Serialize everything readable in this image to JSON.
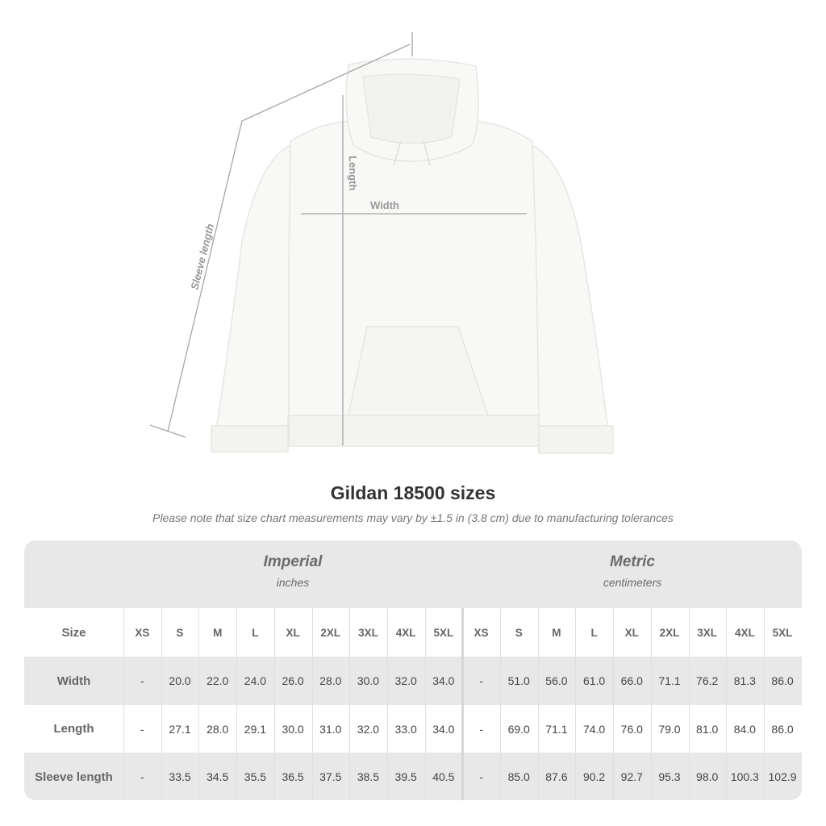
{
  "diagram": {
    "labels": {
      "sleeve": "Sleeve length",
      "length": "Length",
      "width": "Width"
    },
    "garment_color": "#f8f8f6",
    "line_color": "#a6a6a6"
  },
  "title": "Gildan 18500 sizes",
  "note": "Please note that size chart measurements may vary by ±1.5 in (3.8 cm) due to manufacturing tolerances",
  "table": {
    "imperial": {
      "title": "Imperial",
      "unit": "inches"
    },
    "metric": {
      "title": "Metric",
      "unit": "centimeters"
    },
    "size_label": "Size",
    "sizes": [
      "XS",
      "S",
      "M",
      "L",
      "XL",
      "2XL",
      "3XL",
      "4XL",
      "5XL"
    ],
    "rows": [
      {
        "label": "Width",
        "imperial": [
          "-",
          "20.0",
          "22.0",
          "24.0",
          "26.0",
          "28.0",
          "30.0",
          "32.0",
          "34.0"
        ],
        "metric": [
          "-",
          "51.0",
          "56.0",
          "61.0",
          "66.0",
          "71.1",
          "76.2",
          "81.3",
          "86.0"
        ]
      },
      {
        "label": "Length",
        "imperial": [
          "-",
          "27.1",
          "28.0",
          "29.1",
          "30.0",
          "31.0",
          "32.0",
          "33.0",
          "34.0"
        ],
        "metric": [
          "-",
          "69.0",
          "71.1",
          "74.0",
          "76.0",
          "79.0",
          "81.0",
          "84.0",
          "86.0"
        ]
      },
      {
        "label": "Sleeve length",
        "imperial": [
          "-",
          "33.5",
          "34.5",
          "35.5",
          "36.5",
          "37.5",
          "38.5",
          "39.5",
          "40.5"
        ],
        "metric": [
          "-",
          "85.0",
          "87.6",
          "90.2",
          "92.7",
          "95.3",
          "98.0",
          "100.3",
          "102.9"
        ]
      }
    ]
  }
}
